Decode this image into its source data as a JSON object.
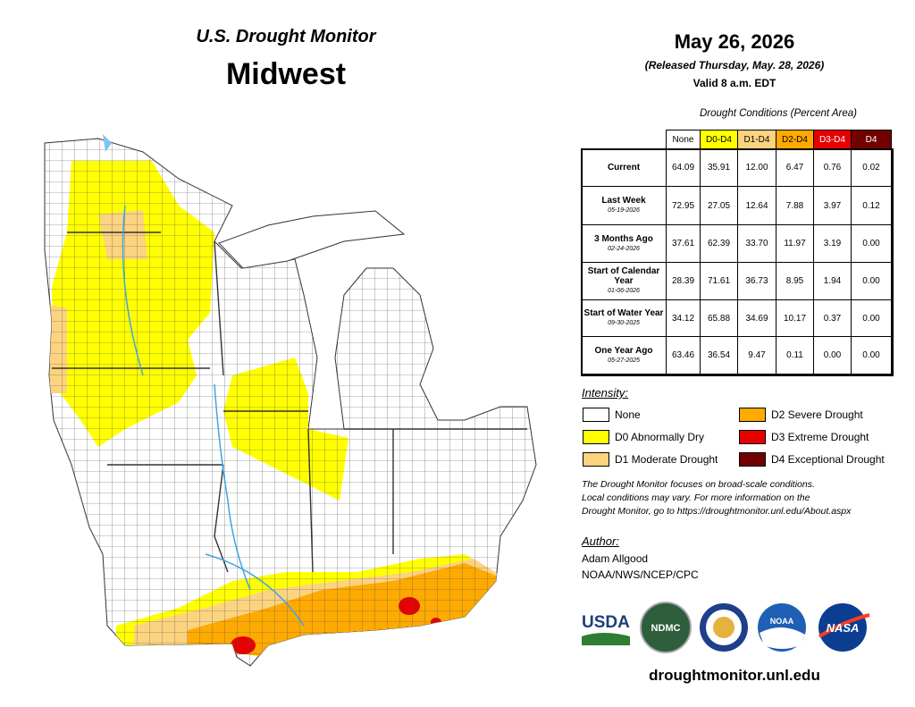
{
  "header": {
    "title": "U.S. Drought Monitor",
    "region": "Midwest"
  },
  "date": {
    "date": "May 26, 2026",
    "released": "(Released Thursday, May. 28, 2026)",
    "valid": "Valid 8 a.m. EDT"
  },
  "table": {
    "caption": "Drought Conditions (Percent Area)",
    "columns": [
      {
        "label": "None",
        "color": "#ffffff",
        "text_color": "#000000"
      },
      {
        "label": "D0-D4",
        "color": "#ffff00",
        "text_color": "#000000"
      },
      {
        "label": "D1-D4",
        "color": "#fcd37f",
        "text_color": "#000000"
      },
      {
        "label": "D2-D4",
        "color": "#ffaa00",
        "text_color": "#000000"
      },
      {
        "label": "D3-D4",
        "color": "#e60000",
        "text_color": "#ffffff"
      },
      {
        "label": "D4",
        "color": "#730000",
        "text_color": "#ffffff"
      }
    ],
    "rows": [
      {
        "label": "Current",
        "values": [
          "64.09",
          "35.91",
          "12.00",
          "6.47",
          "0.76",
          "0.02"
        ]
      },
      {
        "label": "Last Week",
        "date": "05-19-2026",
        "values": [
          "72.95",
          "27.05",
          "12.64",
          "7.88",
          "3.97",
          "0.12"
        ]
      },
      {
        "label": "3 Months Ago",
        "date": "02-24-2026",
        "values": [
          "37.61",
          "62.39",
          "33.70",
          "11.97",
          "3.19",
          "0.00"
        ]
      },
      {
        "label": "Start of Calendar Year",
        "date": "01-06-2026",
        "values": [
          "28.39",
          "71.61",
          "36.73",
          "8.95",
          "1.94",
          "0.00"
        ]
      },
      {
        "label": "Start of Water Year",
        "date": "09-30-2025",
        "values": [
          "34.12",
          "65.88",
          "34.69",
          "10.17",
          "0.37",
          "0.00"
        ]
      },
      {
        "label": "One Year Ago",
        "date": "05-27-2025",
        "values": [
          "63.46",
          "36.54",
          "9.47",
          "0.11",
          "0.00",
          "0.00"
        ]
      }
    ]
  },
  "legend": {
    "title": "Intensity:",
    "items": [
      {
        "label": "None",
        "color": "#ffffff"
      },
      {
        "label": "D0 Abnormally Dry",
        "color": "#ffff00"
      },
      {
        "label": "D1 Moderate Drought",
        "color": "#fcd37f"
      },
      {
        "label": "D2 Severe Drought",
        "color": "#ffaa00"
      },
      {
        "label": "D3 Extreme Drought",
        "color": "#e60000"
      },
      {
        "label": "D4 Exceptional Drought",
        "color": "#730000"
      }
    ]
  },
  "note": [
    "The Drought Monitor focuses on broad-scale conditions.",
    "Local conditions may vary. For more information on the",
    "Drought Monitor, go to https://droughtmonitor.unl.edu/About.aspx"
  ],
  "author": {
    "title": "Author:",
    "name": "Adam Allgood",
    "org": "NOAA/NWS/NCEP/CPC"
  },
  "logos": [
    "USDA",
    "NDMC",
    "NOAA",
    "NASA"
  ],
  "footer": "droughtmonitor.unl.edu"
}
